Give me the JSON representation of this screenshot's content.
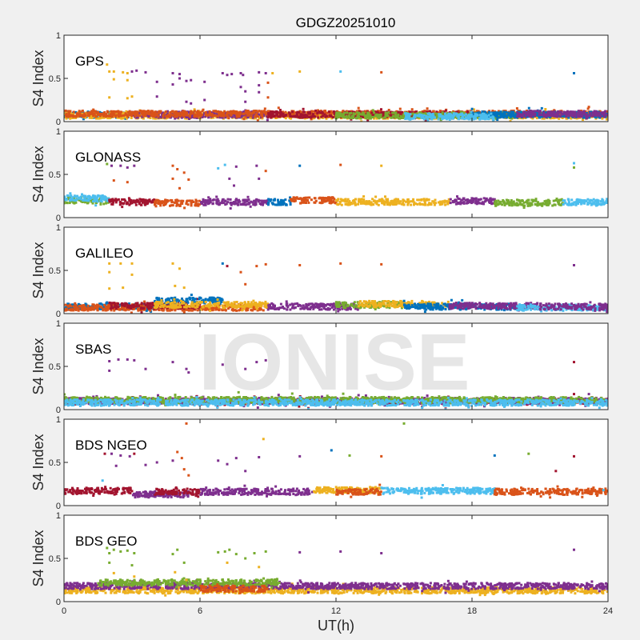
{
  "chart_data": {
    "type": "scatter",
    "title": "GDGZ20251010",
    "xlabel": "UT(h)",
    "ylabel": "S4 Index",
    "xlim": [
      0,
      24
    ],
    "ylim": [
      0,
      1
    ],
    "xticks": [
      "0",
      "6",
      "12",
      "18",
      "24"
    ],
    "yticks": [
      "0",
      "0.5",
      "1"
    ],
    "watermark": "IONISE",
    "colors": {
      "blue": "#0072BD",
      "orange": "#D95319",
      "yellow": "#EDB120",
      "purple": "#7E2F8E",
      "green": "#77AC30",
      "cyan": "#4DBEEE",
      "red": "#A2142F"
    },
    "panels": [
      {
        "name": "GPS",
        "baseline": [
          [
            0,
            3,
            0.08,
            "blue"
          ],
          [
            0,
            24,
            0.07,
            "yellow"
          ],
          [
            3,
            9,
            0.08,
            "purple"
          ],
          [
            0,
            24,
            0.09,
            "orange"
          ],
          [
            9,
            18,
            0.08,
            "red"
          ],
          [
            12,
            20,
            0.07,
            "green"
          ],
          [
            18,
            24,
            0.08,
            "blue"
          ],
          [
            20,
            24,
            0.09,
            "purple"
          ],
          [
            15,
            19,
            0.06,
            "cyan"
          ]
        ],
        "outliers": [
          [
            1.9,
            0.66,
            "yellow"
          ],
          [
            2.0,
            0.58,
            "yellow"
          ],
          [
            2.2,
            0.58,
            "yellow"
          ],
          [
            2.0,
            0.28,
            "yellow"
          ],
          [
            2.2,
            0.49,
            "yellow"
          ],
          [
            2.6,
            0.57,
            "yellow"
          ],
          [
            2.8,
            0.56,
            "yellow"
          ],
          [
            3.0,
            0.58,
            "purple"
          ],
          [
            3.2,
            0.59,
            "purple"
          ],
          [
            2.8,
            0.48,
            "yellow"
          ],
          [
            3.0,
            0.29,
            "yellow"
          ],
          [
            2.8,
            0.27,
            "yellow"
          ],
          [
            3.6,
            0.57,
            "purple"
          ],
          [
            4.1,
            0.46,
            "purple"
          ],
          [
            4.1,
            0.29,
            "purple"
          ],
          [
            4.8,
            0.56,
            "purple"
          ],
          [
            4.8,
            0.43,
            "purple"
          ],
          [
            5.1,
            0.55,
            "purple"
          ],
          [
            5.1,
            0.5,
            "purple"
          ],
          [
            5.4,
            0.47,
            "purple"
          ],
          [
            5.6,
            0.48,
            "purple"
          ],
          [
            5.4,
            0.23,
            "purple"
          ],
          [
            5.6,
            0.21,
            "purple"
          ],
          [
            6.2,
            0.46,
            "purple"
          ],
          [
            6.2,
            0.25,
            "purple"
          ],
          [
            7.0,
            0.56,
            "purple"
          ],
          [
            7.2,
            0.54,
            "purple"
          ],
          [
            7.4,
            0.55,
            "purple"
          ],
          [
            7.8,
            0.56,
            "purple"
          ],
          [
            7.9,
            0.54,
            "purple"
          ],
          [
            7.8,
            0.4,
            "purple"
          ],
          [
            8.0,
            0.35,
            "purple"
          ],
          [
            8.0,
            0.23,
            "purple"
          ],
          [
            8.6,
            0.57,
            "purple"
          ],
          [
            8.9,
            0.56,
            "purple"
          ],
          [
            9.2,
            0.56,
            "yellow"
          ],
          [
            8.6,
            0.42,
            "purple"
          ],
          [
            8.6,
            0.34,
            "purple"
          ],
          [
            9.0,
            0.45,
            "orange"
          ],
          [
            9.0,
            0.28,
            "orange"
          ],
          [
            10.4,
            0.58,
            "yellow"
          ],
          [
            12.2,
            0.58,
            "cyan"
          ],
          [
            14.0,
            0.57,
            "orange"
          ],
          [
            22.5,
            0.56,
            "blue"
          ]
        ]
      },
      {
        "name": "GLONASS",
        "baseline": [
          [
            0,
            2,
            0.2,
            "green"
          ],
          [
            0,
            2,
            0.22,
            "cyan"
          ],
          [
            2,
            4,
            0.18,
            "red"
          ],
          [
            4,
            6,
            0.17,
            "orange"
          ],
          [
            6,
            9,
            0.18,
            "purple"
          ],
          [
            9,
            10,
            0.18,
            "blue"
          ],
          [
            10,
            12,
            0.2,
            "orange"
          ],
          [
            12,
            17,
            0.18,
            "yellow"
          ],
          [
            17,
            19,
            0.19,
            "purple"
          ],
          [
            19,
            22,
            0.17,
            "green"
          ],
          [
            22,
            24,
            0.18,
            "cyan"
          ]
        ],
        "outliers": [
          [
            1.9,
            0.62,
            "green"
          ],
          [
            2.1,
            0.6,
            "purple"
          ],
          [
            2.5,
            0.6,
            "purple"
          ],
          [
            2.8,
            0.58,
            "purple"
          ],
          [
            3.1,
            0.6,
            "purple"
          ],
          [
            2.2,
            0.43,
            "orange"
          ],
          [
            2.8,
            0.41,
            "orange"
          ],
          [
            4.8,
            0.6,
            "orange"
          ],
          [
            5.0,
            0.56,
            "orange"
          ],
          [
            5.3,
            0.52,
            "orange"
          ],
          [
            4.8,
            0.45,
            "orange"
          ],
          [
            5.1,
            0.34,
            "orange"
          ],
          [
            5.5,
            0.44,
            "orange"
          ],
          [
            6.8,
            0.57,
            "cyan"
          ],
          [
            7.1,
            0.61,
            "cyan"
          ],
          [
            7.3,
            0.45,
            "purple"
          ],
          [
            7.5,
            0.37,
            "purple"
          ],
          [
            7.6,
            0.59,
            "purple"
          ],
          [
            8.5,
            0.6,
            "purple"
          ],
          [
            8.9,
            0.54,
            "orange"
          ],
          [
            8.6,
            0.45,
            "purple"
          ],
          [
            10.4,
            0.6,
            "blue"
          ],
          [
            12.2,
            0.61,
            "orange"
          ],
          [
            14.0,
            0.6,
            "yellow"
          ],
          [
            22.5,
            0.63,
            "cyan"
          ],
          [
            22.5,
            0.58,
            "green"
          ]
        ]
      },
      {
        "name": "GALILEO",
        "baseline": [
          [
            0,
            4,
            0.08,
            "blue"
          ],
          [
            0,
            9,
            0.07,
            "orange"
          ],
          [
            2,
            6,
            0.09,
            "red"
          ],
          [
            4,
            7,
            0.15,
            "blue"
          ],
          [
            4,
            9,
            0.1,
            "yellow"
          ],
          [
            9,
            13,
            0.08,
            "purple"
          ],
          [
            12,
            15,
            0.1,
            "green"
          ],
          [
            13,
            17,
            0.11,
            "yellow"
          ],
          [
            15,
            20,
            0.08,
            "blue"
          ],
          [
            17,
            21,
            0.09,
            "purple"
          ],
          [
            20,
            24,
            0.07,
            "cyan"
          ],
          [
            21,
            24,
            0.08,
            "purple"
          ]
        ],
        "outliers": [
          [
            2.0,
            0.58,
            "yellow"
          ],
          [
            2.5,
            0.58,
            "yellow"
          ],
          [
            3.0,
            0.58,
            "yellow"
          ],
          [
            2.0,
            0.48,
            "yellow"
          ],
          [
            2.0,
            0.29,
            "yellow"
          ],
          [
            2.6,
            0.3,
            "yellow"
          ],
          [
            3.0,
            0.45,
            "yellow"
          ],
          [
            4.8,
            0.58,
            "yellow"
          ],
          [
            5.1,
            0.52,
            "yellow"
          ],
          [
            4.9,
            0.32,
            "yellow"
          ],
          [
            5.3,
            0.3,
            "yellow"
          ],
          [
            7.0,
            0.58,
            "blue"
          ],
          [
            7.2,
            0.55,
            "red"
          ],
          [
            7.8,
            0.48,
            "orange"
          ],
          [
            8.0,
            0.34,
            "orange"
          ],
          [
            8.5,
            0.55,
            "orange"
          ],
          [
            8.9,
            0.57,
            "orange"
          ],
          [
            10.4,
            0.56,
            "orange"
          ],
          [
            12.2,
            0.58,
            "orange"
          ],
          [
            14.0,
            0.57,
            "orange"
          ],
          [
            22.5,
            0.56,
            "purple"
          ]
        ]
      },
      {
        "name": "SBAS",
        "baseline": [
          [
            0,
            24,
            0.09,
            "red"
          ],
          [
            0,
            24,
            0.1,
            "purple"
          ],
          [
            0,
            24,
            0.11,
            "green"
          ],
          [
            0,
            24,
            0.08,
            "cyan"
          ]
        ],
        "outliers": [
          [
            2.0,
            0.56,
            "purple"
          ],
          [
            2.4,
            0.58,
            "purple"
          ],
          [
            2.8,
            0.58,
            "purple"
          ],
          [
            3.1,
            0.57,
            "purple"
          ],
          [
            2.0,
            0.45,
            "purple"
          ],
          [
            3.6,
            0.47,
            "purple"
          ],
          [
            4.8,
            0.55,
            "purple"
          ],
          [
            5.4,
            0.47,
            "purple"
          ],
          [
            5.5,
            0.43,
            "purple"
          ],
          [
            7.0,
            0.52,
            "purple"
          ],
          [
            8.0,
            0.47,
            "purple"
          ],
          [
            8.5,
            0.55,
            "purple"
          ],
          [
            8.9,
            0.57,
            "purple"
          ],
          [
            7.7,
            0.2,
            "green"
          ],
          [
            22.5,
            0.55,
            "red"
          ],
          [
            22.5,
            0.18,
            "red"
          ]
        ]
      },
      {
        "name": "BDS NGEO",
        "baseline": [
          [
            0,
            3,
            0.17,
            "red"
          ],
          [
            3,
            5.5,
            0.13,
            "purple"
          ],
          [
            4,
            6,
            0.16,
            "red"
          ],
          [
            6,
            11,
            0.16,
            "purple"
          ],
          [
            11,
            14,
            0.18,
            "yellow"
          ],
          [
            12,
            14,
            0.16,
            "orange"
          ],
          [
            14,
            19,
            0.17,
            "cyan"
          ],
          [
            19,
            24,
            0.16,
            "orange"
          ]
        ],
        "outliers": [
          [
            1.8,
            0.6,
            "red"
          ],
          [
            2.1,
            0.6,
            "purple"
          ],
          [
            2.5,
            0.58,
            "purple"
          ],
          [
            2.9,
            0.57,
            "purple"
          ],
          [
            3.1,
            0.6,
            "red"
          ],
          [
            1.7,
            0.29,
            "cyan"
          ],
          [
            2.3,
            0.46,
            "purple"
          ],
          [
            3.6,
            0.47,
            "purple"
          ],
          [
            4.1,
            0.5,
            "purple"
          ],
          [
            5.0,
            0.62,
            "orange"
          ],
          [
            5.2,
            0.55,
            "orange"
          ],
          [
            5.3,
            0.42,
            "orange"
          ],
          [
            5.5,
            0.35,
            "orange"
          ],
          [
            5.4,
            0.95,
            "orange"
          ],
          [
            4.8,
            0.52,
            "purple"
          ],
          [
            6.8,
            0.52,
            "purple"
          ],
          [
            7.2,
            0.48,
            "purple"
          ],
          [
            7.6,
            0.55,
            "purple"
          ],
          [
            8.6,
            0.56,
            "purple"
          ],
          [
            8.8,
            0.77,
            "yellow"
          ],
          [
            8.0,
            0.4,
            "purple"
          ],
          [
            10.4,
            0.57,
            "purple"
          ],
          [
            11.8,
            0.64,
            "blue"
          ],
          [
            12.6,
            0.58,
            "green"
          ],
          [
            14.0,
            0.57,
            "orange"
          ],
          [
            15.0,
            0.95,
            "green"
          ],
          [
            19.0,
            0.58,
            "blue"
          ],
          [
            20.5,
            0.6,
            "green"
          ],
          [
            21.7,
            0.4,
            "red"
          ],
          [
            22.5,
            0.57,
            "red"
          ],
          [
            23.8,
            0.18,
            "cyan"
          ]
        ]
      },
      {
        "name": "BDS GEO",
        "baseline": [
          [
            0,
            24,
            0.13,
            "yellow"
          ],
          [
            0,
            24,
            0.18,
            "purple"
          ],
          [
            1.5,
            9.5,
            0.22,
            "green"
          ],
          [
            6,
            9,
            0.15,
            "orange"
          ]
        ],
        "outliers": [
          [
            1.9,
            0.62,
            "green"
          ],
          [
            2.0,
            0.56,
            "green"
          ],
          [
            2.2,
            0.6,
            "green"
          ],
          [
            2.5,
            0.58,
            "green"
          ],
          [
            2.8,
            0.59,
            "green"
          ],
          [
            3.1,
            0.56,
            "green"
          ],
          [
            2.0,
            0.45,
            "green"
          ],
          [
            2.2,
            0.33,
            "yellow"
          ],
          [
            3.0,
            0.42,
            "green"
          ],
          [
            3.1,
            0.29,
            "yellow"
          ],
          [
            4.8,
            0.55,
            "green"
          ],
          [
            5.0,
            0.6,
            "green"
          ],
          [
            5.3,
            0.45,
            "green"
          ],
          [
            4.9,
            0.34,
            "yellow"
          ],
          [
            5.4,
            0.25,
            "yellow"
          ],
          [
            6.8,
            0.57,
            "green"
          ],
          [
            7.1,
            0.58,
            "green"
          ],
          [
            7.3,
            0.6,
            "green"
          ],
          [
            7.2,
            0.45,
            "yellow"
          ],
          [
            7.6,
            0.55,
            "green"
          ],
          [
            8.0,
            0.5,
            "green"
          ],
          [
            8.4,
            0.56,
            "green"
          ],
          [
            8.9,
            0.58,
            "green"
          ],
          [
            8.6,
            0.4,
            "yellow"
          ],
          [
            10.4,
            0.57,
            "purple"
          ],
          [
            12.2,
            0.58,
            "purple"
          ],
          [
            14.0,
            0.56,
            "purple"
          ],
          [
            22.5,
            0.6,
            "purple"
          ]
        ]
      }
    ]
  }
}
